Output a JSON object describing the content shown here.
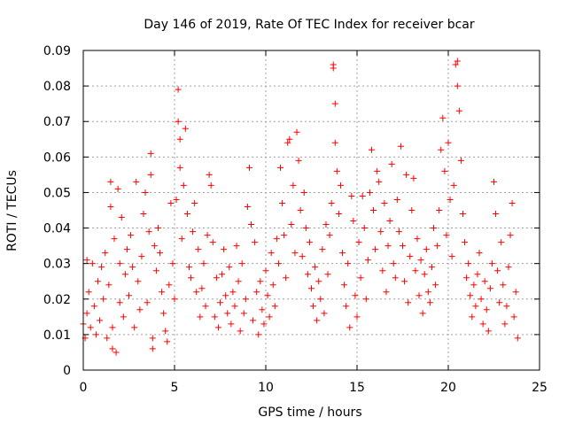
{
  "chart_data": {
    "type": "scatter",
    "title": "Day 146 of 2019, Rate Of TEC Index for receiver bcar",
    "xlabel": "GPS time / hours",
    "ylabel": "ROTI / TECUs",
    "xlim": [
      0,
      25
    ],
    "ylim": [
      0,
      0.09
    ],
    "x_ticks": [
      "0",
      "5",
      "10",
      "15",
      "20",
      "25"
    ],
    "y_ticks": [
      "0",
      "0.01",
      "0.02",
      "0.03",
      "0.04",
      "0.05",
      "0.06",
      "0.07",
      "0.08",
      "0.09"
    ],
    "grid": true,
    "legend": "none",
    "marker": "plus",
    "color": "#ff0000",
    "series": [
      {
        "points": [
          [
            0.0,
            0.013
          ],
          [
            0.1,
            0.009
          ],
          [
            0.2,
            0.016
          ],
          [
            0.2,
            0.031
          ],
          [
            0.3,
            0.022
          ],
          [
            0.4,
            0.012
          ],
          [
            0.5,
            0.03
          ],
          [
            0.6,
            0.018
          ],
          [
            0.7,
            0.01
          ],
          [
            0.8,
            0.025
          ],
          [
            0.9,
            0.014
          ],
          [
            1.0,
            0.029
          ],
          [
            1.1,
            0.02
          ],
          [
            1.2,
            0.033
          ],
          [
            1.3,
            0.009
          ],
          [
            1.4,
            0.024
          ],
          [
            1.5,
            0.046
          ],
          [
            1.5,
            0.053
          ],
          [
            1.6,
            0.012
          ],
          [
            1.6,
            0.006
          ],
          [
            1.7,
            0.037
          ],
          [
            1.8,
            0.005
          ],
          [
            1.9,
            0.051
          ],
          [
            2.0,
            0.03
          ],
          [
            2.0,
            0.019
          ],
          [
            2.1,
            0.043
          ],
          [
            2.2,
            0.015
          ],
          [
            2.3,
            0.027
          ],
          [
            2.4,
            0.034
          ],
          [
            2.5,
            0.021
          ],
          [
            2.6,
            0.038
          ],
          [
            2.7,
            0.029
          ],
          [
            2.8,
            0.012
          ],
          [
            2.9,
            0.053
          ],
          [
            3.0,
            0.025
          ],
          [
            3.1,
            0.017
          ],
          [
            3.2,
            0.032
          ],
          [
            3.3,
            0.044
          ],
          [
            3.4,
            0.05
          ],
          [
            3.5,
            0.019
          ],
          [
            3.6,
            0.039
          ],
          [
            3.7,
            0.055
          ],
          [
            3.7,
            0.061
          ],
          [
            3.8,
            0.006
          ],
          [
            3.8,
            0.009
          ],
          [
            3.9,
            0.035
          ],
          [
            4.0,
            0.028
          ],
          [
            4.1,
            0.04
          ],
          [
            4.2,
            0.033
          ],
          [
            4.3,
            0.022
          ],
          [
            4.4,
            0.016
          ],
          [
            4.5,
            0.011
          ],
          [
            4.6,
            0.008
          ],
          [
            4.7,
            0.024
          ],
          [
            4.8,
            0.047
          ],
          [
            4.9,
            0.03
          ],
          [
            5.0,
            0.02
          ],
          [
            5.1,
            0.048
          ],
          [
            5.2,
            0.079
          ],
          [
            5.2,
            0.07
          ],
          [
            5.3,
            0.057
          ],
          [
            5.3,
            0.065
          ],
          [
            5.4,
            0.037
          ],
          [
            5.5,
            0.052
          ],
          [
            5.6,
            0.068
          ],
          [
            5.7,
            0.044
          ],
          [
            5.8,
            0.029
          ],
          [
            5.9,
            0.026
          ],
          [
            6.0,
            0.039
          ],
          [
            6.1,
            0.047
          ],
          [
            6.2,
            0.022
          ],
          [
            6.3,
            0.034
          ],
          [
            6.4,
            0.015
          ],
          [
            6.5,
            0.023
          ],
          [
            6.6,
            0.03
          ],
          [
            6.7,
            0.018
          ],
          [
            6.8,
            0.038
          ],
          [
            6.9,
            0.055
          ],
          [
            7.0,
            0.052
          ],
          [
            7.1,
            0.036
          ],
          [
            7.2,
            0.015
          ],
          [
            7.3,
            0.026
          ],
          [
            7.4,
            0.012
          ],
          [
            7.5,
            0.019
          ],
          [
            7.6,
            0.027
          ],
          [
            7.7,
            0.034
          ],
          [
            7.8,
            0.021
          ],
          [
            7.9,
            0.016
          ],
          [
            8.0,
            0.029
          ],
          [
            8.1,
            0.013
          ],
          [
            8.2,
            0.022
          ],
          [
            8.3,
            0.018
          ],
          [
            8.4,
            0.035
          ],
          [
            8.5,
            0.025
          ],
          [
            8.6,
            0.011
          ],
          [
            8.7,
            0.03
          ],
          [
            8.8,
            0.016
          ],
          [
            8.9,
            0.02
          ],
          [
            9.0,
            0.046
          ],
          [
            9.1,
            0.057
          ],
          [
            9.2,
            0.041
          ],
          [
            9.3,
            0.014
          ],
          [
            9.4,
            0.036
          ],
          [
            9.5,
            0.022
          ],
          [
            9.6,
            0.01
          ],
          [
            9.7,
            0.025
          ],
          [
            9.8,
            0.017
          ],
          [
            9.9,
            0.013
          ],
          [
            10.0,
            0.028
          ],
          [
            10.1,
            0.021
          ],
          [
            10.2,
            0.015
          ],
          [
            10.3,
            0.033
          ],
          [
            10.4,
            0.024
          ],
          [
            10.5,
            0.018
          ],
          [
            10.6,
            0.037
          ],
          [
            10.7,
            0.03
          ],
          [
            10.8,
            0.057
          ],
          [
            10.9,
            0.047
          ],
          [
            11.0,
            0.038
          ],
          [
            11.1,
            0.026
          ],
          [
            11.2,
            0.064
          ],
          [
            11.3,
            0.065
          ],
          [
            11.4,
            0.041
          ],
          [
            11.5,
            0.052
          ],
          [
            11.6,
            0.033
          ],
          [
            11.7,
            0.067
          ],
          [
            11.8,
            0.059
          ],
          [
            11.9,
            0.045
          ],
          [
            12.0,
            0.032
          ],
          [
            12.1,
            0.05
          ],
          [
            12.2,
            0.04
          ],
          [
            12.3,
            0.027
          ],
          [
            12.4,
            0.036
          ],
          [
            12.5,
            0.023
          ],
          [
            12.6,
            0.018
          ],
          [
            12.7,
            0.029
          ],
          [
            12.8,
            0.014
          ],
          [
            12.9,
            0.025
          ],
          [
            13.0,
            0.02
          ],
          [
            13.1,
            0.034
          ],
          [
            13.2,
            0.016
          ],
          [
            13.3,
            0.041
          ],
          [
            13.4,
            0.027
          ],
          [
            13.5,
            0.038
          ],
          [
            13.6,
            0.047
          ],
          [
            13.7,
            0.086
          ],
          [
            13.7,
            0.085
          ],
          [
            13.8,
            0.075
          ],
          [
            13.8,
            0.064
          ],
          [
            13.9,
            0.056
          ],
          [
            14.0,
            0.044
          ],
          [
            14.1,
            0.052
          ],
          [
            14.2,
            0.033
          ],
          [
            14.3,
            0.024
          ],
          [
            14.4,
            0.018
          ],
          [
            14.5,
            0.03
          ],
          [
            14.6,
            0.012
          ],
          [
            14.7,
            0.049
          ],
          [
            14.8,
            0.042
          ],
          [
            14.9,
            0.021
          ],
          [
            15.0,
            0.015
          ],
          [
            15.1,
            0.036
          ],
          [
            15.2,
            0.026
          ],
          [
            15.3,
            0.049
          ],
          [
            15.4,
            0.04
          ],
          [
            15.5,
            0.02
          ],
          [
            15.6,
            0.031
          ],
          [
            15.7,
            0.05
          ],
          [
            15.8,
            0.062
          ],
          [
            15.9,
            0.045
          ],
          [
            16.0,
            0.034
          ],
          [
            16.1,
            0.056
          ],
          [
            16.2,
            0.053
          ],
          [
            16.3,
            0.039
          ],
          [
            16.4,
            0.028
          ],
          [
            16.5,
            0.047
          ],
          [
            16.6,
            0.022
          ],
          [
            16.7,
            0.035
          ],
          [
            16.8,
            0.042
          ],
          [
            16.9,
            0.058
          ],
          [
            17.0,
            0.03
          ],
          [
            17.1,
            0.026
          ],
          [
            17.2,
            0.048
          ],
          [
            17.3,
            0.039
          ],
          [
            17.4,
            0.063
          ],
          [
            17.5,
            0.035
          ],
          [
            17.6,
            0.025
          ],
          [
            17.7,
            0.055
          ],
          [
            17.8,
            0.019
          ],
          [
            17.9,
            0.032
          ],
          [
            18.0,
            0.045
          ],
          [
            18.1,
            0.054
          ],
          [
            18.2,
            0.028
          ],
          [
            18.3,
            0.037
          ],
          [
            18.4,
            0.021
          ],
          [
            18.5,
            0.031
          ],
          [
            18.6,
            0.016
          ],
          [
            18.7,
            0.027
          ],
          [
            18.8,
            0.034
          ],
          [
            18.9,
            0.022
          ],
          [
            19.0,
            0.019
          ],
          [
            19.1,
            0.029
          ],
          [
            19.2,
            0.04
          ],
          [
            19.3,
            0.024
          ],
          [
            19.4,
            0.035
          ],
          [
            19.5,
            0.045
          ],
          [
            19.6,
            0.062
          ],
          [
            19.7,
            0.071
          ],
          [
            19.8,
            0.056
          ],
          [
            19.9,
            0.038
          ],
          [
            20.0,
            0.064
          ],
          [
            20.1,
            0.048
          ],
          [
            20.2,
            0.032
          ],
          [
            20.3,
            0.052
          ],
          [
            20.4,
            0.086
          ],
          [
            20.5,
            0.087
          ],
          [
            20.5,
            0.08
          ],
          [
            20.6,
            0.073
          ],
          [
            20.7,
            0.059
          ],
          [
            20.8,
            0.044
          ],
          [
            20.9,
            0.036
          ],
          [
            21.0,
            0.026
          ],
          [
            21.1,
            0.03
          ],
          [
            21.2,
            0.021
          ],
          [
            21.3,
            0.015
          ],
          [
            21.4,
            0.024
          ],
          [
            21.5,
            0.018
          ],
          [
            21.6,
            0.027
          ],
          [
            21.7,
            0.033
          ],
          [
            21.8,
            0.02
          ],
          [
            21.9,
            0.013
          ],
          [
            22.0,
            0.025
          ],
          [
            22.1,
            0.017
          ],
          [
            22.2,
            0.011
          ],
          [
            22.3,
            0.023
          ],
          [
            22.4,
            0.03
          ],
          [
            22.5,
            0.053
          ],
          [
            22.6,
            0.044
          ],
          [
            22.7,
            0.028
          ],
          [
            22.8,
            0.019
          ],
          [
            22.9,
            0.036
          ],
          [
            23.0,
            0.024
          ],
          [
            23.1,
            0.013
          ],
          [
            23.2,
            0.018
          ],
          [
            23.3,
            0.029
          ],
          [
            23.4,
            0.038
          ],
          [
            23.5,
            0.047
          ],
          [
            23.6,
            0.015
          ],
          [
            23.7,
            0.022
          ],
          [
            23.8,
            0.009
          ]
        ]
      }
    ]
  }
}
